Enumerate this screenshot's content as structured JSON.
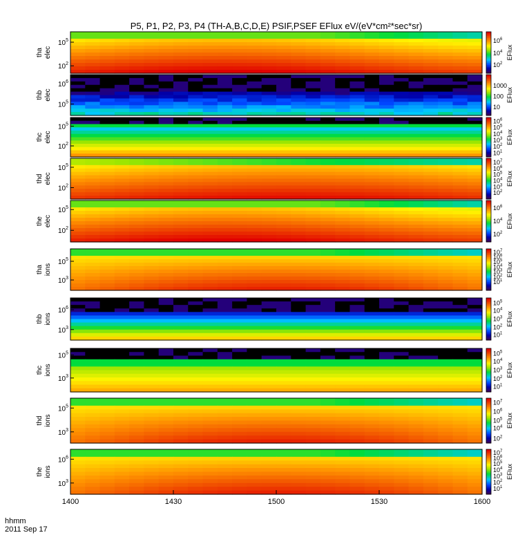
{
  "chart_data": {
    "type": "heatmap",
    "title": "P5, P1, P2, P3, P4 (TH-A,B,C,D,E) PSIF,PSEF EFlux eV/(eV*cm²*sec*sr)",
    "x_axis": {
      "label_line1": "hhmm",
      "label_line2": "2011 Sep 17",
      "ticks": [
        "1400",
        "1430",
        "1500",
        "1530",
        "1600"
      ],
      "tick_values": [
        0,
        30,
        60,
        90,
        120
      ],
      "range": [
        0,
        120
      ]
    },
    "colorbar_label": "EFlux",
    "panels": [
      {
        "probe": "tha",
        "species": "elec",
        "profile": "warm",
        "y_ticks": [
          {
            "mant": "10",
            "exp": "5",
            "pos": 0.25
          },
          {
            "mant": "10",
            "exp": "2",
            "pos": 0.82
          }
        ],
        "cb_ticks": [
          {
            "mant": "10",
            "exp": "6",
            "pos": 0.22
          },
          {
            "mant": "10",
            "exp": "4",
            "pos": 0.52
          },
          {
            "mant": "10",
            "exp": "2",
            "pos": 0.8
          }
        ]
      },
      {
        "probe": "thb",
        "species": "elec",
        "profile": "cold",
        "y_ticks": [
          {
            "mant": "10",
            "exp": "6",
            "pos": 0.22
          },
          {
            "mant": "10",
            "exp": "5",
            "pos": 0.72
          }
        ],
        "cb_ticks": [
          {
            "mant": "1000",
            "exp": "",
            "pos": 0.27
          },
          {
            "mant": "100",
            "exp": "",
            "pos": 0.53
          },
          {
            "mant": "10",
            "exp": "",
            "pos": 0.8
          }
        ]
      },
      {
        "probe": "thc",
        "species": "elec",
        "profile": "cool",
        "y_ticks": [
          {
            "mant": "10",
            "exp": "5",
            "pos": 0.22
          },
          {
            "mant": "10",
            "exp": "2",
            "pos": 0.72
          }
        ],
        "cb_ticks": [
          {
            "mant": "10",
            "exp": "6",
            "pos": 0.1
          },
          {
            "mant": "10",
            "exp": "5",
            "pos": 0.25
          },
          {
            "mant": "10",
            "exp": "4",
            "pos": 0.42
          },
          {
            "mant": "10",
            "exp": "3",
            "pos": 0.58
          },
          {
            "mant": "10",
            "exp": "2",
            "pos": 0.74
          },
          {
            "mant": "10",
            "exp": "1",
            "pos": 0.9
          }
        ]
      },
      {
        "probe": "thd",
        "species": "elec",
        "profile": "hotmid",
        "y_ticks": [
          {
            "mant": "10",
            "exp": "5",
            "pos": 0.22
          },
          {
            "mant": "10",
            "exp": "2",
            "pos": 0.72
          }
        ],
        "cb_ticks": [
          {
            "mant": "10",
            "exp": "7",
            "pos": 0.1
          },
          {
            "mant": "10",
            "exp": "6",
            "pos": 0.25
          },
          {
            "mant": "10",
            "exp": "5",
            "pos": 0.4
          },
          {
            "mant": "10",
            "exp": "4",
            "pos": 0.55
          },
          {
            "mant": "10",
            "exp": "3",
            "pos": 0.7
          },
          {
            "mant": "10",
            "exp": "2",
            "pos": 0.85
          }
        ]
      },
      {
        "probe": "the",
        "species": "elec",
        "profile": "warm",
        "y_ticks": [
          {
            "mant": "10",
            "exp": "5",
            "pos": 0.22
          },
          {
            "mant": "10",
            "exp": "2",
            "pos": 0.72
          }
        ],
        "cb_ticks": [
          {
            "mant": "10",
            "exp": "6",
            "pos": 0.18
          },
          {
            "mant": "10",
            "exp": "4",
            "pos": 0.5
          },
          {
            "mant": "10",
            "exp": "2",
            "pos": 0.82
          }
        ]
      },
      {
        "probe": "tha",
        "species": "ions",
        "profile": "hotions",
        "y_ticks": [
          {
            "mant": "10",
            "exp": "5",
            "pos": 0.3
          },
          {
            "mant": "10",
            "exp": "3",
            "pos": 0.75
          }
        ],
        "cb_ticks": [
          {
            "mant": "10",
            "exp": "7",
            "pos": 0.08
          },
          {
            "mant": "10",
            "exp": "6",
            "pos": 0.2
          },
          {
            "mant": "10",
            "exp": "5",
            "pos": 0.32
          },
          {
            "mant": "10",
            "exp": "4",
            "pos": 0.44
          },
          {
            "mant": "10",
            "exp": "3",
            "pos": 0.56
          },
          {
            "mant": "10",
            "exp": "2",
            "pos": 0.68
          },
          {
            "mant": "10",
            "exp": "1",
            "pos": 0.8
          }
        ]
      },
      {
        "probe": "thb",
        "species": "ions",
        "profile": "coldions",
        "y_ticks": [
          {
            "mant": "10",
            "exp": "6",
            "pos": 0.28
          },
          {
            "mant": "10",
            "exp": "3",
            "pos": 0.75
          }
        ],
        "cb_ticks": [
          {
            "mant": "10",
            "exp": "5",
            "pos": 0.12
          },
          {
            "mant": "10",
            "exp": "4",
            "pos": 0.3
          },
          {
            "mant": "10",
            "exp": "3",
            "pos": 0.5
          },
          {
            "mant": "10",
            "exp": "2",
            "pos": 0.7
          },
          {
            "mant": "10",
            "exp": "1",
            "pos": 0.88
          }
        ]
      },
      {
        "probe": "thc",
        "species": "ions",
        "profile": "coolions",
        "y_ticks": [
          {
            "mant": "10",
            "exp": "5",
            "pos": 0.15
          },
          {
            "mant": "10",
            "exp": "3",
            "pos": 0.68
          }
        ],
        "cb_ticks": [
          {
            "mant": "10",
            "exp": "5",
            "pos": 0.12
          },
          {
            "mant": "10",
            "exp": "4",
            "pos": 0.3
          },
          {
            "mant": "10",
            "exp": "3",
            "pos": 0.5
          },
          {
            "mant": "10",
            "exp": "2",
            "pos": 0.7
          },
          {
            "mant": "10",
            "exp": "1",
            "pos": 0.88
          }
        ]
      },
      {
        "probe": "thd",
        "species": "ions",
        "profile": "hotions",
        "y_ticks": [
          {
            "mant": "10",
            "exp": "5",
            "pos": 0.22
          },
          {
            "mant": "10",
            "exp": "3",
            "pos": 0.75
          }
        ],
        "cb_ticks": [
          {
            "mant": "10",
            "exp": "7",
            "pos": 0.1
          },
          {
            "mant": "10",
            "exp": "6",
            "pos": 0.3
          },
          {
            "mant": "10",
            "exp": "5",
            "pos": 0.5
          },
          {
            "mant": "10",
            "exp": "4",
            "pos": 0.67
          },
          {
            "mant": "10",
            "exp": "2",
            "pos": 0.9
          }
        ]
      },
      {
        "probe": "the",
        "species": "ions",
        "profile": "hotions",
        "y_ticks": [
          {
            "mant": "10",
            "exp": "6",
            "pos": 0.22
          },
          {
            "mant": "10",
            "exp": "3",
            "pos": 0.75
          }
        ],
        "cb_ticks": [
          {
            "mant": "10",
            "exp": "7",
            "pos": 0.08
          },
          {
            "mant": "10",
            "exp": "6",
            "pos": 0.2
          },
          {
            "mant": "10",
            "exp": "5",
            "pos": 0.32
          },
          {
            "mant": "10",
            "exp": "4",
            "pos": 0.46
          },
          {
            "mant": "10",
            "exp": "3",
            "pos": 0.6
          },
          {
            "mant": "10",
            "exp": "2",
            "pos": 0.74
          },
          {
            "mant": "10",
            "exp": "1",
            "pos": 0.88
          }
        ]
      }
    ]
  }
}
